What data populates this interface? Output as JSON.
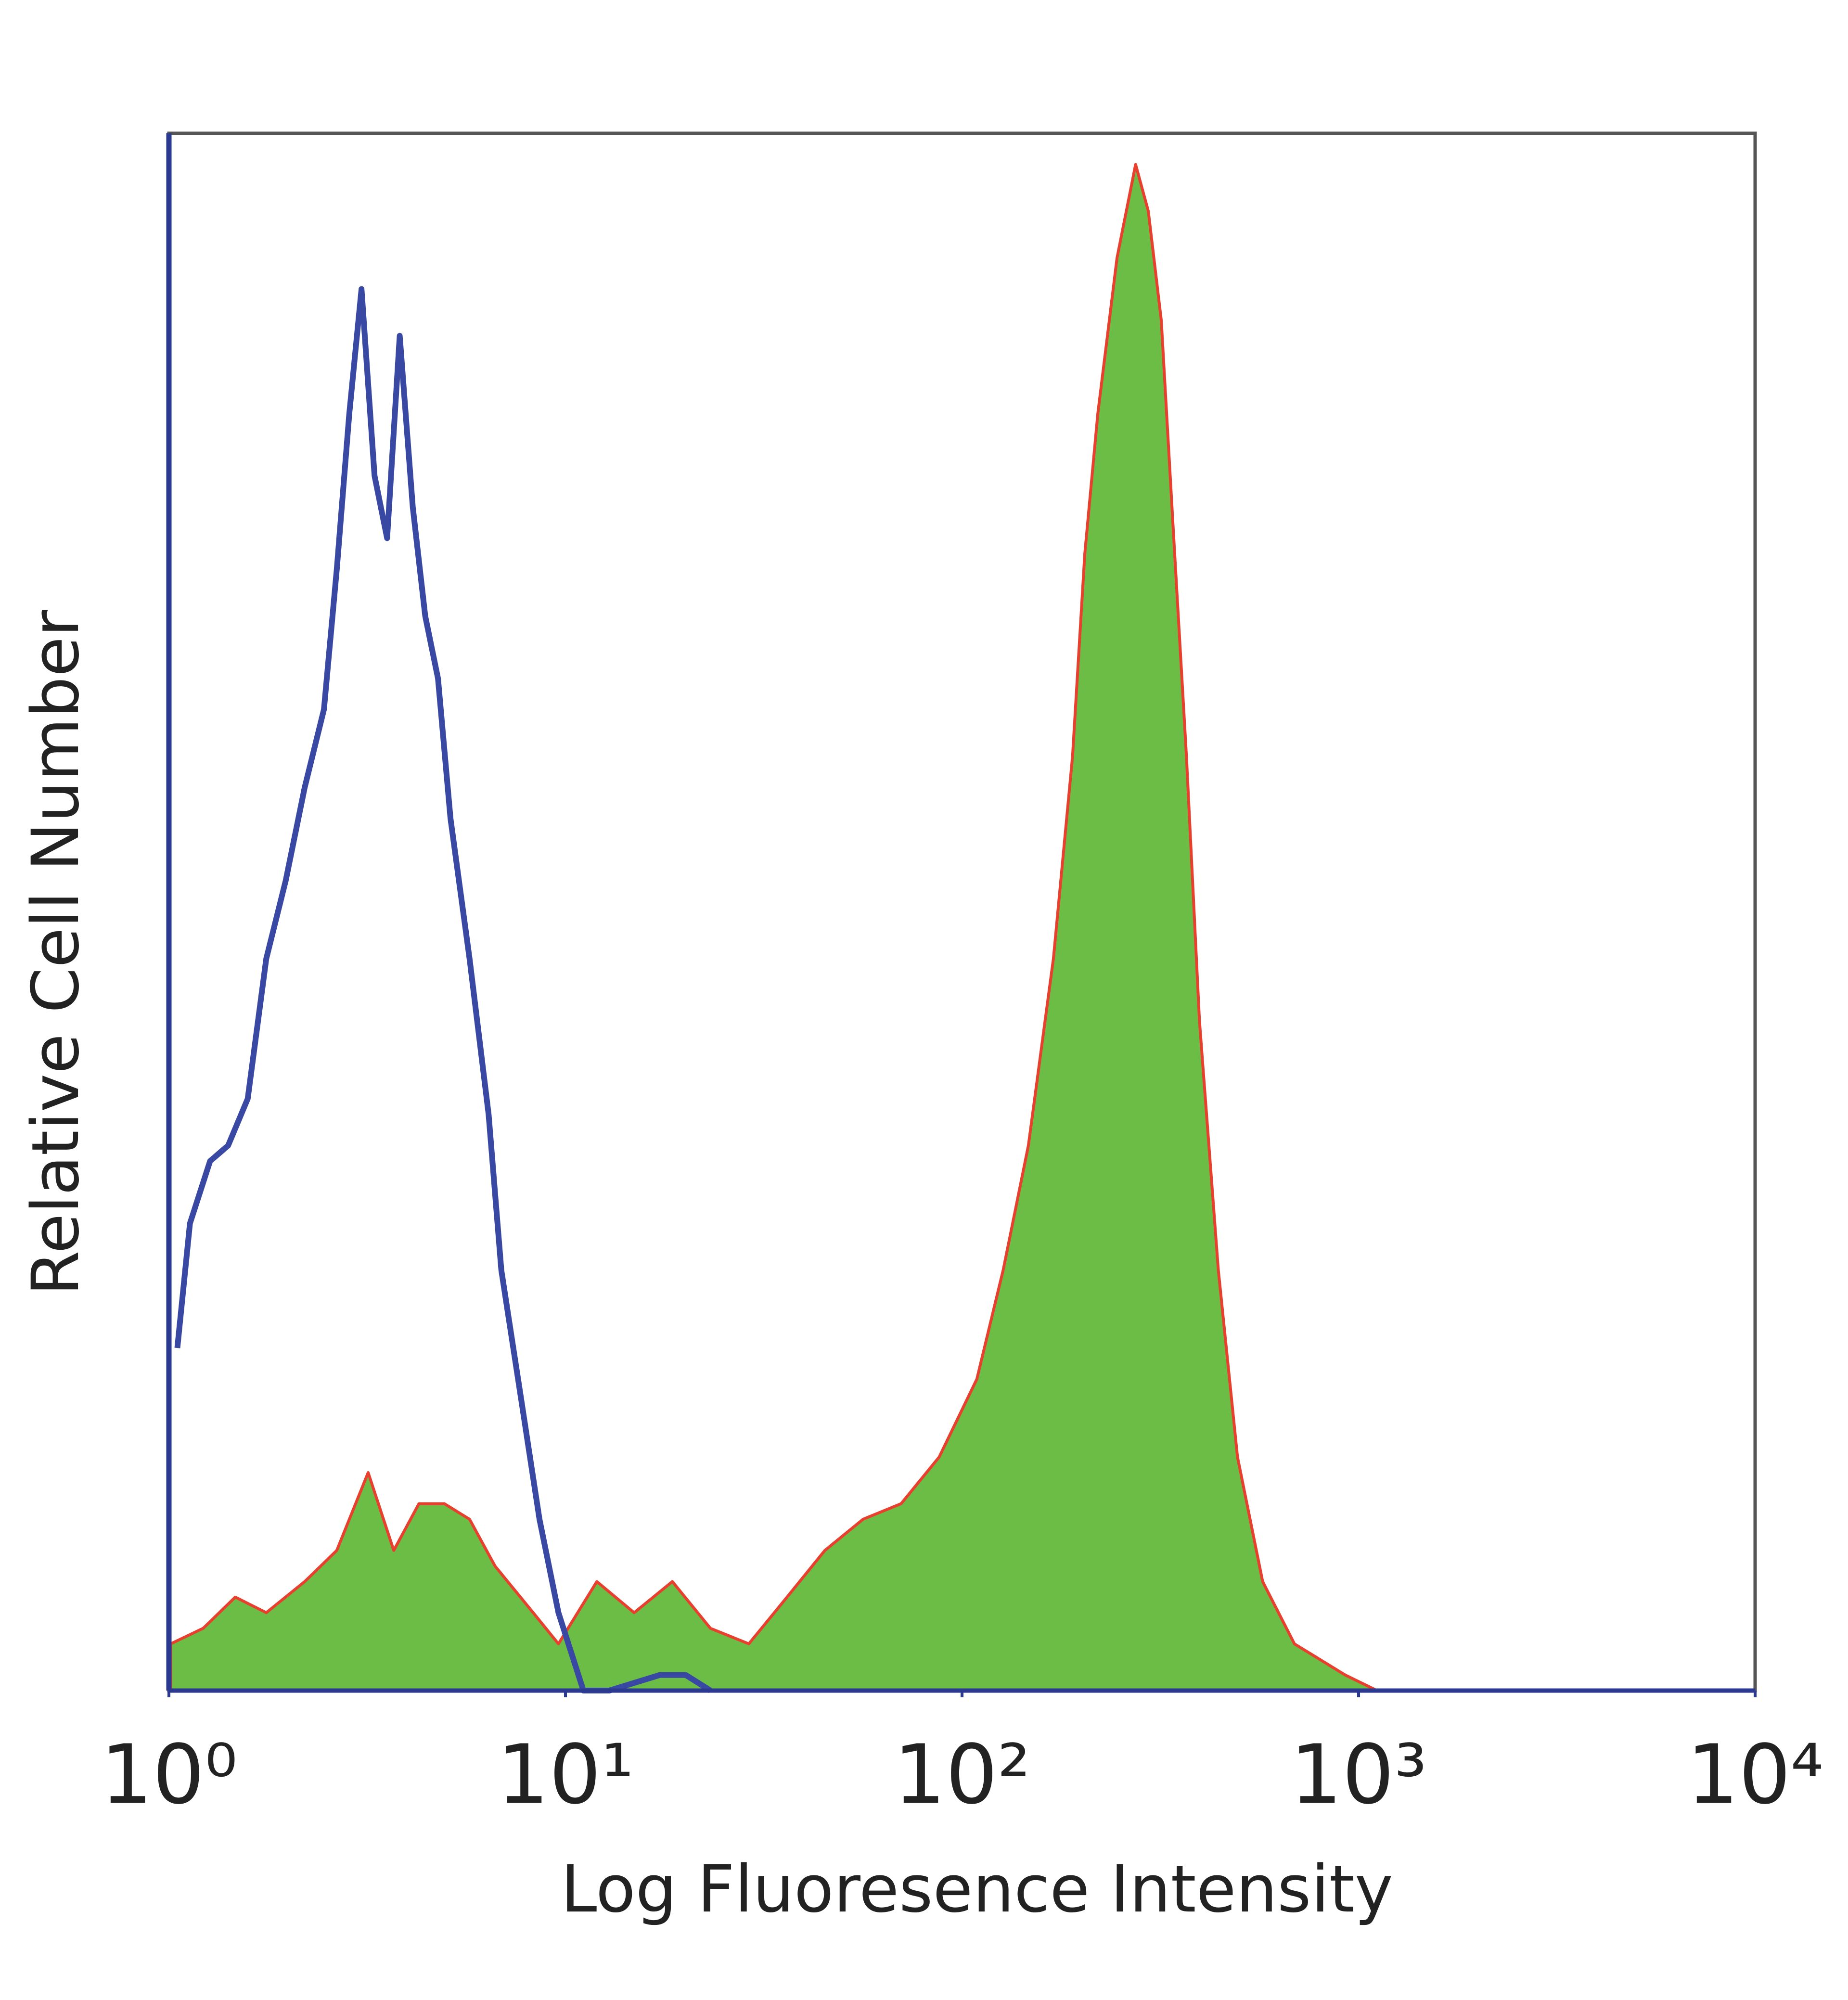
{
  "chart_data": {
    "type": "histogram-overlay",
    "x_label": "Log Fluoresence Intensity",
    "y_label": "Relative Cell Number",
    "xscale": "log",
    "xlim": [
      1,
      10000
    ],
    "ylim": [
      0,
      100
    ],
    "xticks": [
      {
        "value": 1,
        "label": "10⁰"
      },
      {
        "value": 10,
        "label": "10¹"
      },
      {
        "value": 100,
        "label": "10²"
      },
      {
        "value": 1000,
        "label": "10³"
      },
      {
        "value": 10000,
        "label": "10⁴"
      }
    ],
    "series": [
      {
        "style": "line",
        "color": "#3949a3",
        "x": [
          1.05,
          1.13,
          1.27,
          1.41,
          1.58,
          1.76,
          1.97,
          2.2,
          2.46,
          2.65,
          2.85,
          3.06,
          3.3,
          3.55,
          3.82,
          4.12,
          4.43,
          4.77,
          5.13,
          5.73,
          6.4,
          6.89,
          7.7,
          8.6,
          9.6,
          11.1,
          12.9,
          17.3,
          20.1,
          23.2
        ],
        "values": [
          22,
          30,
          34,
          35,
          38,
          47,
          52,
          58,
          63,
          72,
          82,
          90,
          78,
          74,
          87,
          76,
          69,
          65,
          56,
          47,
          37,
          27,
          19,
          11,
          5,
          0,
          0,
          1,
          1,
          0
        ]
      },
      {
        "style": "area",
        "color": "#6cbd45",
        "edge_color": "#e8402e",
        "x": [
          1.01,
          1.22,
          1.47,
          1.76,
          2.2,
          2.65,
          3.18,
          3.69,
          4.27,
          4.95,
          5.73,
          6.64,
          8.29,
          9.6,
          12,
          14.9,
          18.6,
          23.2,
          29,
          36.2,
          45.1,
          56.3,
          70.2,
          87.6,
          109,
          127,
          147,
          170,
          190,
          204,
          220,
          246,
          274,
          295,
          318,
          342,
          368,
          397,
          443,
          495,
          573,
          689,
          925,
          1113
        ],
        "values": [
          3,
          4,
          6,
          5,
          7,
          9,
          14,
          9,
          12,
          12,
          11,
          8,
          5,
          3,
          7,
          5,
          7,
          4,
          3,
          6,
          9,
          11,
          12,
          15,
          20,
          27,
          35,
          47,
          60,
          73,
          82,
          92,
          98,
          95,
          88,
          74,
          60,
          43,
          27,
          15,
          7,
          3,
          1,
          0
        ]
      }
    ]
  }
}
